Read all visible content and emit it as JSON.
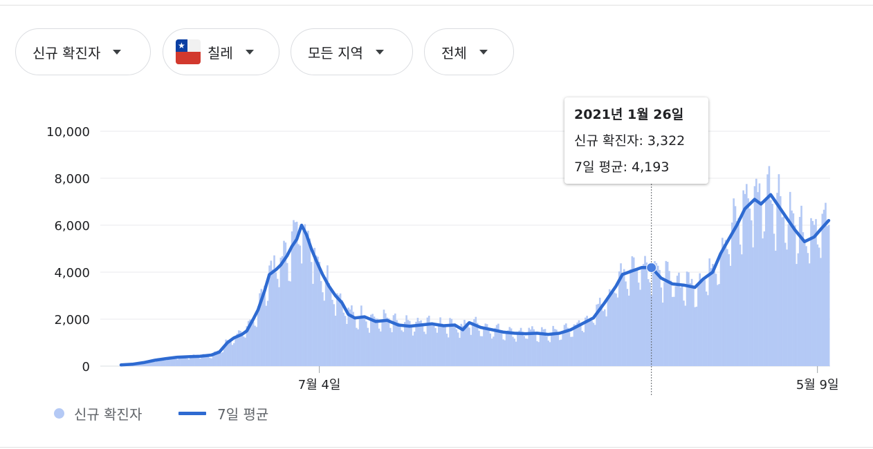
{
  "filters": {
    "metric": "신규 확진자",
    "country": "칠레",
    "region": "모든 지역",
    "period": "전체"
  },
  "tooltip": {
    "date": "2021년 1월 26일",
    "new_cases_label": "신규 확진자: 3,322",
    "avg_label": "7일 평균: 4,193"
  },
  "legend": {
    "bars": "신규 확진자",
    "line": "7일 평균"
  },
  "colors": {
    "bars": "#b4c9f5",
    "line": "#2e6ad1",
    "grid": "#e8eaed"
  },
  "chart_data": {
    "type": "bar",
    "y_ticks": [
      "0",
      "2,000",
      "4,000",
      "6,000",
      "8,000",
      "10,000"
    ],
    "ylim": [
      0,
      10000
    ],
    "x_tick_labels": [
      "7월 4일",
      "5월 9일"
    ],
    "x_tick_dates": [
      "2020-07-04",
      "2021-05-09"
    ],
    "grid": true,
    "legend_position": "bottom-left",
    "highlight": {
      "date": "2021-01-26",
      "new_cases": 3322,
      "avg": 4193
    },
    "series": [
      {
        "name": "7일 평균",
        "type": "line",
        "points": [
          [
            "2020-03-03",
            50
          ],
          [
            "2020-03-10",
            80
          ],
          [
            "2020-03-17",
            150
          ],
          [
            "2020-03-24",
            250
          ],
          [
            "2020-03-31",
            320
          ],
          [
            "2020-04-07",
            380
          ],
          [
            "2020-04-14",
            400
          ],
          [
            "2020-04-21",
            420
          ],
          [
            "2020-04-28",
            470
          ],
          [
            "2020-05-03",
            600
          ],
          [
            "2020-05-08",
            1000
          ],
          [
            "2020-05-12",
            1200
          ],
          [
            "2020-05-17",
            1350
          ],
          [
            "2020-05-20",
            1500
          ],
          [
            "2020-05-24",
            2000
          ],
          [
            "2020-05-27",
            2400
          ],
          [
            "2020-05-31",
            3200
          ],
          [
            "2020-06-03",
            3900
          ],
          [
            "2020-06-07",
            4100
          ],
          [
            "2020-06-10",
            4300
          ],
          [
            "2020-06-14",
            4700
          ],
          [
            "2020-06-17",
            5100
          ],
          [
            "2020-06-20",
            5400
          ],
          [
            "2020-06-23",
            6000
          ],
          [
            "2020-06-26",
            5600
          ],
          [
            "2020-06-29",
            5000
          ],
          [
            "2020-07-02",
            4500
          ],
          [
            "2020-07-06",
            3900
          ],
          [
            "2020-07-10",
            3400
          ],
          [
            "2020-07-14",
            3000
          ],
          [
            "2020-07-18",
            2700
          ],
          [
            "2020-07-22",
            2200
          ],
          [
            "2020-07-26",
            2050
          ],
          [
            "2020-08-01",
            2100
          ],
          [
            "2020-08-08",
            1900
          ],
          [
            "2020-08-15",
            1950
          ],
          [
            "2020-08-22",
            1750
          ],
          [
            "2020-08-29",
            1700
          ],
          [
            "2020-09-05",
            1750
          ],
          [
            "2020-09-12",
            1800
          ],
          [
            "2020-09-19",
            1720
          ],
          [
            "2020-09-26",
            1750
          ],
          [
            "2020-10-01",
            1550
          ],
          [
            "2020-10-05",
            1850
          ],
          [
            "2020-10-12",
            1650
          ],
          [
            "2020-10-19",
            1550
          ],
          [
            "2020-10-26",
            1450
          ],
          [
            "2020-11-02",
            1400
          ],
          [
            "2020-11-09",
            1380
          ],
          [
            "2020-11-16",
            1400
          ],
          [
            "2020-11-23",
            1350
          ],
          [
            "2020-11-30",
            1400
          ],
          [
            "2020-12-07",
            1550
          ],
          [
            "2020-12-14",
            1800
          ],
          [
            "2020-12-21",
            2050
          ],
          [
            "2020-12-28",
            2700
          ],
          [
            "2021-01-04",
            3400
          ],
          [
            "2021-01-08",
            3900
          ],
          [
            "2021-01-14",
            4050
          ],
          [
            "2021-01-20",
            4200
          ],
          [
            "2021-01-26",
            4193
          ],
          [
            "2021-02-01",
            3750
          ],
          [
            "2021-02-08",
            3500
          ],
          [
            "2021-02-15",
            3450
          ],
          [
            "2021-02-22",
            3350
          ],
          [
            "2021-02-27",
            3700
          ],
          [
            "2021-03-05",
            4000
          ],
          [
            "2021-03-10",
            4800
          ],
          [
            "2021-03-15",
            5400
          ],
          [
            "2021-03-20",
            6000
          ],
          [
            "2021-03-25",
            6700
          ],
          [
            "2021-03-31",
            7100
          ],
          [
            "2021-04-04",
            6900
          ],
          [
            "2021-04-10",
            7300
          ],
          [
            "2021-04-15",
            6800
          ],
          [
            "2021-04-20",
            6300
          ],
          [
            "2021-04-25",
            5800
          ],
          [
            "2021-05-01",
            5300
          ],
          [
            "2021-05-07",
            5500
          ],
          [
            "2021-05-12",
            5900
          ],
          [
            "2021-05-16",
            6200
          ]
        ]
      }
    ]
  }
}
